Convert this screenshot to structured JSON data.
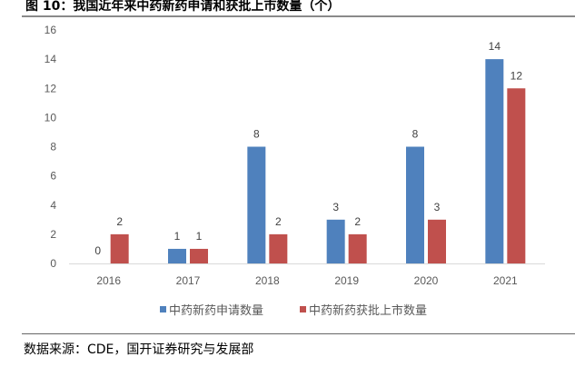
{
  "title": "图 10：我国近年来中药新药申请和获批上市数量（个）",
  "source": "数据来源：CDE，国开证券研究与发展部",
  "chart_data": {
    "type": "bar",
    "title": "我国近年来中药新药申请和获批上市数量（个）",
    "xlabel": "",
    "ylabel": "",
    "categories": [
      "2016",
      "2017",
      "2018",
      "2019",
      "2020",
      "2021"
    ],
    "series": [
      {
        "name": "中药新药申请数量",
        "color": "#4f81bd",
        "values": [
          0,
          1,
          8,
          3,
          8,
          14
        ]
      },
      {
        "name": "中药新药获批上市数量",
        "color": "#c0504d",
        "values": [
          2,
          1,
          2,
          2,
          3,
          12
        ]
      }
    ],
    "ylim": [
      0,
      16
    ],
    "yticks": [
      0,
      2,
      4,
      6,
      8,
      10,
      12,
      14,
      16
    ],
    "grid": false,
    "legend": "bottom",
    "data_labels": true
  }
}
